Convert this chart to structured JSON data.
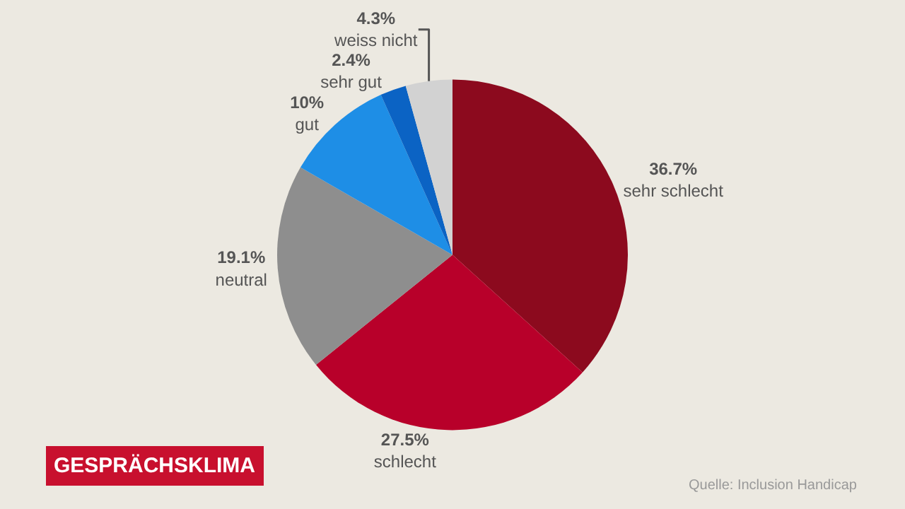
{
  "chart_data": {
    "type": "pie",
    "title": "GESPRÄCHSKLIMA",
    "categories": [
      "sehr schlecht",
      "schlecht",
      "neutral",
      "gut",
      "sehr gut",
      "weiss nicht"
    ],
    "values": [
      36.7,
      27.5,
      19.1,
      10,
      2.4,
      4.3
    ],
    "colors": [
      "#8c0a1e",
      "#b8002a",
      "#8e8e8e",
      "#1e8ee6",
      "#0b63c4",
      "#d2d2d2"
    ],
    "value_labels": [
      "36.7%",
      "27.5%",
      "19.1%",
      "10%",
      "2.4%",
      "4.3%"
    ],
    "annotations": [
      "Quelle: Inclusion Handicap"
    ],
    "legend": false
  }
}
